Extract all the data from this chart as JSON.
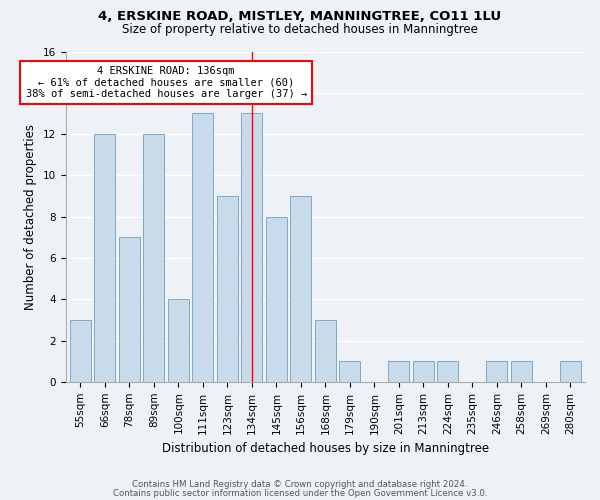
{
  "title1": "4, ERSKINE ROAD, MISTLEY, MANNINGTREE, CO11 1LU",
  "title2": "Size of property relative to detached houses in Manningtree",
  "xlabel": "Distribution of detached houses by size in Manningtree",
  "ylabel": "Number of detached properties",
  "categories": [
    "55sqm",
    "66sqm",
    "78sqm",
    "89sqm",
    "100sqm",
    "111sqm",
    "123sqm",
    "134sqm",
    "145sqm",
    "156sqm",
    "168sqm",
    "179sqm",
    "190sqm",
    "201sqm",
    "213sqm",
    "224sqm",
    "235sqm",
    "246sqm",
    "258sqm",
    "269sqm",
    "280sqm"
  ],
  "values": [
    3,
    12,
    7,
    12,
    4,
    13,
    9,
    13,
    8,
    9,
    3,
    1,
    0,
    1,
    1,
    1,
    0,
    1,
    1,
    0,
    1
  ],
  "bar_color": "#c9daea",
  "bar_edge_color": "#7aaac8",
  "red_line_index": 7,
  "annotation_title": "4 ERSKINE ROAD: 136sqm",
  "annotation_line1": "← 61% of detached houses are smaller (60)",
  "annotation_line2": "38% of semi-detached houses are larger (37) →",
  "ylim": [
    0,
    16
  ],
  "yticks": [
    0,
    2,
    4,
    6,
    8,
    10,
    12,
    14,
    16
  ],
  "footer1": "Contains HM Land Registry data © Crown copyright and database right 2024.",
  "footer2": "Contains public sector information licensed under the Open Government Licence v3.0.",
  "bg_color": "#eef2f7",
  "plot_bg_color": "#eef2f7",
  "title_fontsize": 9.5,
  "subtitle_fontsize": 8.5,
  "ylabel_fontsize": 8.5,
  "xlabel_fontsize": 8.5,
  "tick_fontsize": 7.5,
  "annot_fontsize": 7.5,
  "footer_fontsize": 6.2,
  "grid_color": "#ffffff",
  "spine_color": "#aaaaaa"
}
